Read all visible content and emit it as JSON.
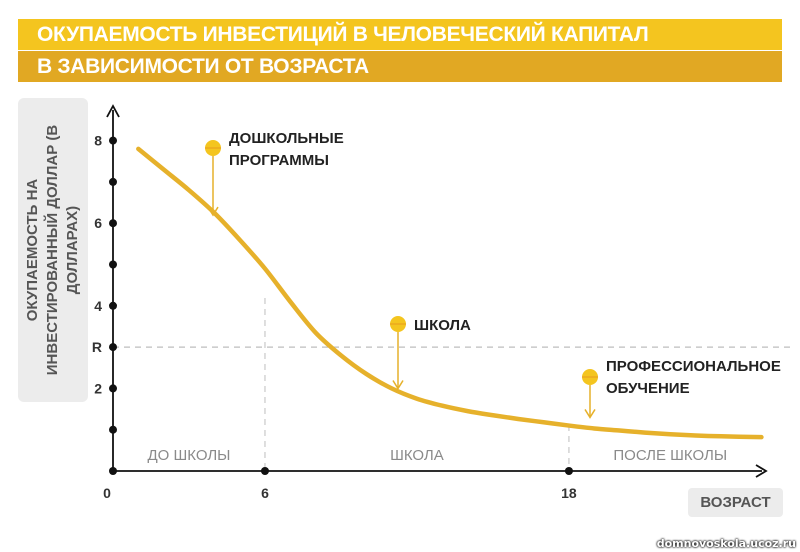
{
  "title": {
    "line1": "ОКУПАЕМОСТЬ ИНВЕСТИЦИЙ В ЧЕЛОВЕЧЕСКИЙ КАПИТАЛ",
    "line2": "В ЗАВИСИМОСТИ ОТ ВОЗРАСТА"
  },
  "colors": {
    "curve": "#e6b12b",
    "marker": "#f4c51f",
    "title_bg_1": "#f4c51f",
    "title_bg_2": "#e1a823",
    "axis": "#111111"
  },
  "watermark": "domnovoskola.ucoz.ru",
  "chart_data": {
    "type": "line",
    "ylabel": "ОКУПАЕМОСТЬ НА ИНВЕСТИРОВАННЫЙ ДОЛЛАР (В ДОЛЛАРАХ)",
    "xlabel": "ВОЗРАСТ",
    "x_ticks": [
      {
        "value": 0,
        "label": "0"
      },
      {
        "value": 6,
        "label": "6"
      },
      {
        "value": 18,
        "label": "18"
      }
    ],
    "y_ticks": [
      {
        "value": 1,
        "label": ""
      },
      {
        "value": 2,
        "label": "2"
      },
      {
        "value": 3,
        "label": "R"
      },
      {
        "value": 4,
        "label": "4"
      },
      {
        "value": 5,
        "label": ""
      },
      {
        "value": 6,
        "label": "6"
      },
      {
        "value": 7,
        "label": ""
      },
      {
        "value": 8,
        "label": "8"
      }
    ],
    "xlim": [
      0,
      26
    ],
    "ylim": [
      0,
      8.5
    ],
    "reference_line": {
      "label": "R",
      "value": 3
    },
    "stages": [
      {
        "label": "ДО ШКОЛЫ",
        "from": 0,
        "to": 6
      },
      {
        "label": "ШКОЛА",
        "from": 6,
        "to": 18
      },
      {
        "label": "ПОСЛЕ ШКОЛЫ",
        "from": 18,
        "to": 26
      }
    ],
    "annotations": [
      {
        "lines": [
          "ДОШКОЛЬНЫЕ",
          "ПРОГРАММЫ"
        ],
        "x": 4,
        "y": 6.1
      },
      {
        "lines": [
          "ШКОЛА"
        ],
        "x": 11.3,
        "y": 1.9
      },
      {
        "lines": [
          "ПРОФЕССИОНАЛЬНОЕ",
          "ОБУЧЕНИЕ"
        ],
        "x": 19,
        "y": 1.2
      }
    ],
    "series": [
      {
        "x": [
          1,
          2,
          3,
          4,
          5,
          6,
          7,
          8,
          9,
          10,
          11,
          12,
          13,
          14,
          15,
          16,
          17,
          18,
          19,
          20,
          21,
          22,
          23,
          24,
          25.6
        ],
        "y": [
          7.8,
          7.3,
          6.8,
          6.25,
          5.6,
          4.9,
          4.1,
          3.35,
          2.8,
          2.35,
          2.0,
          1.75,
          1.58,
          1.45,
          1.35,
          1.26,
          1.18,
          1.1,
          1.03,
          0.98,
          0.93,
          0.89,
          0.86,
          0.84,
          0.82
        ]
      }
    ]
  }
}
